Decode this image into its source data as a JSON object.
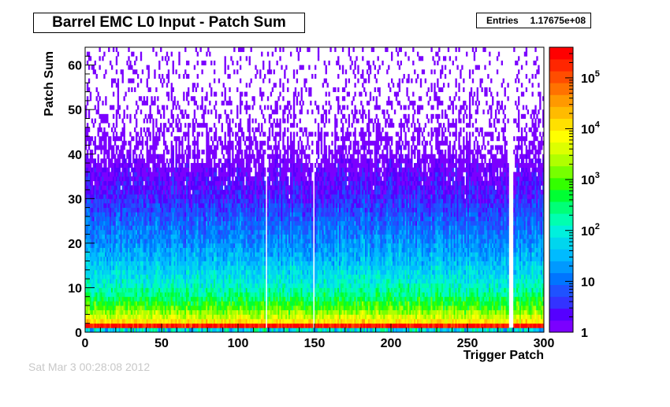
{
  "stats": {
    "label": "Entries",
    "value": "1.17675e+08"
  },
  "footer_text": "Sat Mar  3 00:28:08 2012",
  "chart_data": {
    "type": "heatmap",
    "title": "Barrel EMC L0 Input - Patch Sum",
    "xlabel": "Trigger Patch",
    "ylabel": "Patch Sum",
    "xlim": [
      0,
      300
    ],
    "ylim": [
      0,
      64
    ],
    "x_ticks": [
      0,
      50,
      100,
      150,
      200,
      250,
      300
    ],
    "y_ticks": [
      0,
      10,
      20,
      30,
      40,
      50,
      60
    ],
    "x_bins": 300,
    "y_bins": 64,
    "z_scale": "log",
    "zlim": [
      1,
      400000
    ],
    "colorbar_ticks": [
      {
        "value": 1,
        "label": "1"
      },
      {
        "value": 10,
        "label": "10"
      },
      {
        "value": 100,
        "label": "10",
        "exp": "2"
      },
      {
        "value": 1000,
        "label": "10",
        "exp": "3"
      },
      {
        "value": 10000,
        "label": "10",
        "exp": "4"
      },
      {
        "value": 100000,
        "label": "10",
        "exp": "5"
      }
    ],
    "colors": [
      "#7b00ff",
      "#5500ff",
      "#3333ff",
      "#1f52ff",
      "#0075ff",
      "#0099ff",
      "#00bbff",
      "#00d6ee",
      "#00f0dd",
      "#00ffb0",
      "#00ff77",
      "#00ff33",
      "#33ff00",
      "#77ff00",
      "#b0ff00",
      "#ddff00",
      "#ffff00",
      "#ffe000",
      "#ffbb00",
      "#ff9900",
      "#ff7200",
      "#ff4d00",
      "#ff2600",
      "#ff0000"
    ],
    "profile_log10_counts_by_patch_sum": [
      {
        "y": 0,
        "log10": 2.0
      },
      {
        "y": 1,
        "log10": 5.4
      },
      {
        "y": 2,
        "log10": 4.0
      },
      {
        "y": 3,
        "log10": 3.6
      },
      {
        "y": 4,
        "log10": 3.3
      },
      {
        "y": 5,
        "log10": 3.0
      },
      {
        "y": 6,
        "log10": 2.8
      },
      {
        "y": 7,
        "log10": 2.6
      },
      {
        "y": 8,
        "log10": 2.4
      },
      {
        "y": 10,
        "log10": 2.1
      },
      {
        "y": 12,
        "log10": 1.9
      },
      {
        "y": 15,
        "log10": 1.6
      },
      {
        "y": 20,
        "log10": 1.2
      },
      {
        "y": 25,
        "log10": 0.9
      },
      {
        "y": 30,
        "log10": 0.5
      },
      {
        "y": 35,
        "log10": 0.2
      },
      {
        "y": 40,
        "log10": -0.2
      },
      {
        "y": 50,
        "log10": -0.6
      },
      {
        "y": 63,
        "log10": -0.9
      }
    ],
    "empty_patches": [
      118,
      149,
      277,
      278,
      279
    ]
  }
}
